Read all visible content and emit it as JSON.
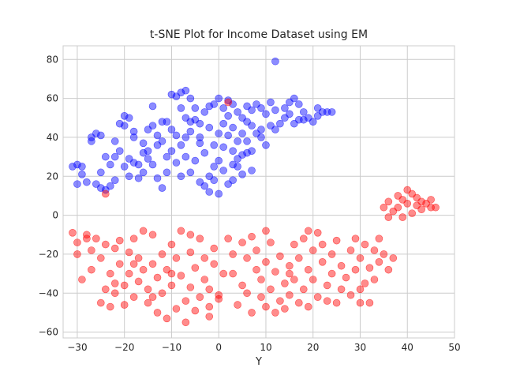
{
  "chart_data": {
    "type": "scatter",
    "title": "t-SNE Plot for Income Dataset using EM",
    "xlabel": "Y",
    "ylabel": "",
    "xlim": [
      -33,
      50
    ],
    "ylim": [
      -63,
      87
    ],
    "xticks": [
      -30,
      -20,
      -10,
      0,
      10,
      20,
      30,
      40,
      50
    ],
    "yticks": [
      -60,
      -40,
      -20,
      0,
      20,
      40,
      60,
      80
    ],
    "grid": true,
    "legend": "none",
    "point_alpha": 0.45,
    "series": [
      {
        "color": "#0000ff",
        "points": [
          [
            -31,
            25
          ],
          [
            -30,
            16
          ],
          [
            -30,
            26
          ],
          [
            -29,
            25
          ],
          [
            -29,
            21
          ],
          [
            -28,
            17
          ],
          [
            -27,
            40
          ],
          [
            -26,
            42
          ],
          [
            -26,
            16
          ],
          [
            -25,
            41
          ],
          [
            -25,
            14
          ],
          [
            -24,
            13
          ],
          [
            -24,
            30
          ],
          [
            -23,
            26
          ],
          [
            -23,
            15
          ],
          [
            -22,
            38
          ],
          [
            -22,
            18
          ],
          [
            -21,
            47
          ],
          [
            -21,
            33
          ],
          [
            -20,
            51
          ],
          [
            -20,
            25
          ],
          [
            -19,
            50
          ],
          [
            -19,
            29
          ],
          [
            -19,
            20
          ],
          [
            -18,
            40
          ],
          [
            -18,
            43
          ],
          [
            -17,
            26
          ],
          [
            -17,
            19
          ],
          [
            -16,
            37
          ],
          [
            -16,
            22
          ],
          [
            -15,
            44
          ],
          [
            -15,
            33
          ],
          [
            -15,
            29
          ],
          [
            -14,
            46
          ],
          [
            -14,
            26
          ],
          [
            -14,
            56
          ],
          [
            -13,
            41
          ],
          [
            -13,
            19
          ],
          [
            -12,
            48
          ],
          [
            -12,
            38
          ],
          [
            -11,
            48
          ],
          [
            -11,
            22
          ],
          [
            -10,
            62
          ],
          [
            -10,
            33
          ],
          [
            -10,
            44
          ],
          [
            -9,
            61
          ],
          [
            -9,
            41
          ],
          [
            -9,
            27
          ],
          [
            -8,
            63
          ],
          [
            -8,
            55
          ],
          [
            -8,
            36
          ],
          [
            -7,
            64
          ],
          [
            -7,
            50
          ],
          [
            -7,
            30
          ],
          [
            -6,
            60
          ],
          [
            -6,
            43
          ],
          [
            -6,
            22
          ],
          [
            -5,
            55
          ],
          [
            -5,
            49
          ],
          [
            -5,
            28
          ],
          [
            -4,
            47
          ],
          [
            -4,
            17
          ],
          [
            -4,
            37
          ],
          [
            -3,
            53
          ],
          [
            -3,
            15
          ],
          [
            -3,
            32
          ],
          [
            -2,
            45
          ],
          [
            -2,
            20
          ],
          [
            -2,
            12
          ],
          [
            -1,
            57
          ],
          [
            -1,
            36
          ],
          [
            -1,
            25
          ],
          [
            0,
            60
          ],
          [
            0,
            42
          ],
          [
            0,
            28
          ],
          [
            0,
            11
          ],
          [
            1,
            55
          ],
          [
            1,
            47
          ],
          [
            1,
            35
          ],
          [
            1,
            23
          ],
          [
            2,
            59
          ],
          [
            2,
            51
          ],
          [
            2,
            41
          ],
          [
            2,
            16
          ],
          [
            3,
            57
          ],
          [
            3,
            45
          ],
          [
            3,
            33
          ],
          [
            3,
            18
          ],
          [
            4,
            53
          ],
          [
            4,
            38
          ],
          [
            4,
            25
          ],
          [
            5,
            50
          ],
          [
            5,
            42
          ],
          [
            5,
            31
          ],
          [
            5,
            21
          ],
          [
            6,
            48
          ],
          [
            6,
            56
          ],
          [
            6,
            32
          ],
          [
            7,
            54
          ],
          [
            7,
            46
          ],
          [
            7,
            33
          ],
          [
            7,
            23
          ],
          [
            8,
            57
          ],
          [
            8,
            42
          ],
          [
            9,
            55
          ],
          [
            9,
            44
          ],
          [
            10,
            52
          ],
          [
            10,
            36
          ],
          [
            11,
            46
          ],
          [
            11,
            58
          ],
          [
            12,
            54
          ],
          [
            12,
            44
          ],
          [
            12,
            79
          ],
          [
            13,
            47
          ],
          [
            14,
            50
          ],
          [
            15,
            58
          ],
          [
            15,
            52
          ],
          [
            16,
            60
          ],
          [
            16,
            47
          ],
          [
            17,
            57
          ],
          [
            18,
            53
          ],
          [
            18,
            49
          ],
          [
            19,
            50
          ],
          [
            20,
            48
          ],
          [
            21,
            55
          ],
          [
            21,
            51
          ],
          [
            22,
            53
          ],
          [
            23,
            53
          ],
          [
            24,
            53
          ],
          [
            -27,
            38
          ],
          [
            -25,
            22
          ],
          [
            -18,
            27
          ],
          [
            -12,
            14
          ],
          [
            -8,
            20
          ],
          [
            -6,
            48
          ],
          [
            -4,
            40
          ],
          [
            -2,
            56
          ],
          [
            3,
            26
          ],
          [
            6,
            38
          ],
          [
            9,
            40
          ],
          [
            -16,
            32
          ],
          [
            -11,
            30
          ],
          [
            -1,
            18
          ],
          [
            4,
            29
          ],
          [
            -20,
            46
          ],
          [
            -13,
            36
          ],
          [
            -7,
            40
          ],
          [
            14,
            55
          ],
          [
            17,
            49
          ],
          [
            -22,
            30
          ]
        ]
      },
      {
        "color": "#ff0000",
        "points": [
          [
            -31,
            -9
          ],
          [
            -30,
            -14
          ],
          [
            -30,
            -20
          ],
          [
            -29,
            -33
          ],
          [
            -28,
            -12
          ],
          [
            -27,
            -28
          ],
          [
            -27,
            -18
          ],
          [
            -26,
            -12
          ],
          [
            -25,
            -45
          ],
          [
            -25,
            -22
          ],
          [
            -24,
            -15
          ],
          [
            -24,
            -38
          ],
          [
            -23,
            -30
          ],
          [
            -23,
            -47
          ],
          [
            -22,
            -17
          ],
          [
            -22,
            -40
          ],
          [
            -21,
            -25
          ],
          [
            -21,
            -13
          ],
          [
            -20,
            -36
          ],
          [
            -20,
            -46
          ],
          [
            -19,
            -19
          ],
          [
            -19,
            -30
          ],
          [
            -18,
            -12
          ],
          [
            -18,
            -42
          ],
          [
            -17,
            -22
          ],
          [
            -17,
            -34
          ],
          [
            -16,
            -8
          ],
          [
            -16,
            -28
          ],
          [
            -15,
            -45
          ],
          [
            -15,
            -38
          ],
          [
            -14,
            -25
          ],
          [
            -14,
            -10
          ],
          [
            -13,
            -32
          ],
          [
            -13,
            -50
          ],
          [
            -12,
            -20
          ],
          [
            -12,
            -40
          ],
          [
            -11,
            -28
          ],
          [
            -11,
            -53
          ],
          [
            -10,
            -15
          ],
          [
            -10,
            -36
          ],
          [
            -9,
            -48
          ],
          [
            -9,
            -22
          ],
          [
            -8,
            -8
          ],
          [
            -8,
            -31
          ],
          [
            -7,
            -44
          ],
          [
            -7,
            -55
          ],
          [
            -6,
            -19
          ],
          [
            -6,
            -37
          ],
          [
            -5,
            -27
          ],
          [
            -5,
            -49
          ],
          [
            -4,
            -12
          ],
          [
            -4,
            -42
          ],
          [
            -3,
            -33
          ],
          [
            -3,
            -22
          ],
          [
            -2,
            -47
          ],
          [
            -2,
            -38
          ],
          [
            -1,
            -25
          ],
          [
            -1,
            -17
          ],
          [
            0,
            -41
          ],
          [
            0,
            -43
          ],
          [
            2,
            -12
          ],
          [
            3,
            -20
          ],
          [
            3,
            -30
          ],
          [
            4,
            -46
          ],
          [
            5,
            -14
          ],
          [
            5,
            -36
          ],
          [
            6,
            -22
          ],
          [
            6,
            -40
          ],
          [
            7,
            -11
          ],
          [
            7,
            -50
          ],
          [
            8,
            -28
          ],
          [
            8,
            -18
          ],
          [
            9,
            -42
          ],
          [
            9,
            -33
          ],
          [
            10,
            -47
          ],
          [
            10,
            -24
          ],
          [
            11,
            -14
          ],
          [
            11,
            -38
          ],
          [
            12,
            -50
          ],
          [
            12,
            -29
          ],
          [
            13,
            -44
          ],
          [
            13,
            -21
          ],
          [
            14,
            -35
          ],
          [
            14,
            -48
          ],
          [
            15,
            -26
          ],
          [
            15,
            -41
          ],
          [
            16,
            -15
          ],
          [
            16,
            -33
          ],
          [
            17,
            -45
          ],
          [
            17,
            -22
          ],
          [
            18,
            -12
          ],
          [
            18,
            -38
          ],
          [
            19,
            -28
          ],
          [
            19,
            -47
          ],
          [
            20,
            -18
          ],
          [
            20,
            -33
          ],
          [
            21,
            -9
          ],
          [
            21,
            -42
          ],
          [
            22,
            -24
          ],
          [
            22,
            -15
          ],
          [
            23,
            -36
          ],
          [
            23,
            -44
          ],
          [
            24,
            -20
          ],
          [
            24,
            -30
          ],
          [
            25,
            -13
          ],
          [
            26,
            -38
          ],
          [
            26,
            -26
          ],
          [
            27,
            -32
          ],
          [
            28,
            -41
          ],
          [
            28,
            -18
          ],
          [
            29,
            -12
          ],
          [
            29,
            -28
          ],
          [
            30,
            -22
          ],
          [
            30,
            -45
          ],
          [
            31,
            -35
          ],
          [
            31,
            -15
          ],
          [
            32,
            -45
          ],
          [
            32,
            -27
          ],
          [
            33,
            -18
          ],
          [
            33,
            -33
          ],
          [
            34,
            -24
          ],
          [
            34,
            -12
          ],
          [
            35,
            -20
          ],
          [
            36,
            -28
          ],
          [
            37,
            -22
          ],
          [
            35,
            4
          ],
          [
            36,
            -1
          ],
          [
            36,
            7
          ],
          [
            37,
            2
          ],
          [
            38,
            10
          ],
          [
            38,
            4
          ],
          [
            39,
            8
          ],
          [
            39,
            -1
          ],
          [
            40,
            13
          ],
          [
            40,
            6
          ],
          [
            41,
            1
          ],
          [
            41,
            11
          ],
          [
            42,
            5
          ],
          [
            42,
            9
          ],
          [
            43,
            3
          ],
          [
            43,
            7
          ],
          [
            44,
            6
          ],
          [
            45,
            8
          ],
          [
            45,
            4
          ],
          [
            46,
            4
          ],
          [
            -24,
            11
          ],
          [
            -18,
            -25
          ],
          [
            -10,
            -30
          ],
          [
            -6,
            -10
          ],
          [
            1,
            -30
          ],
          [
            10,
            -8
          ],
          [
            15,
            -30
          ],
          [
            19,
            -8
          ],
          [
            25,
            -45
          ],
          [
            30,
            -38
          ],
          [
            2,
            58
          ],
          [
            -28,
            -10
          ],
          [
            -22,
            -35
          ],
          [
            -14,
            -42
          ],
          [
            -2,
            -52
          ]
        ]
      }
    ]
  }
}
